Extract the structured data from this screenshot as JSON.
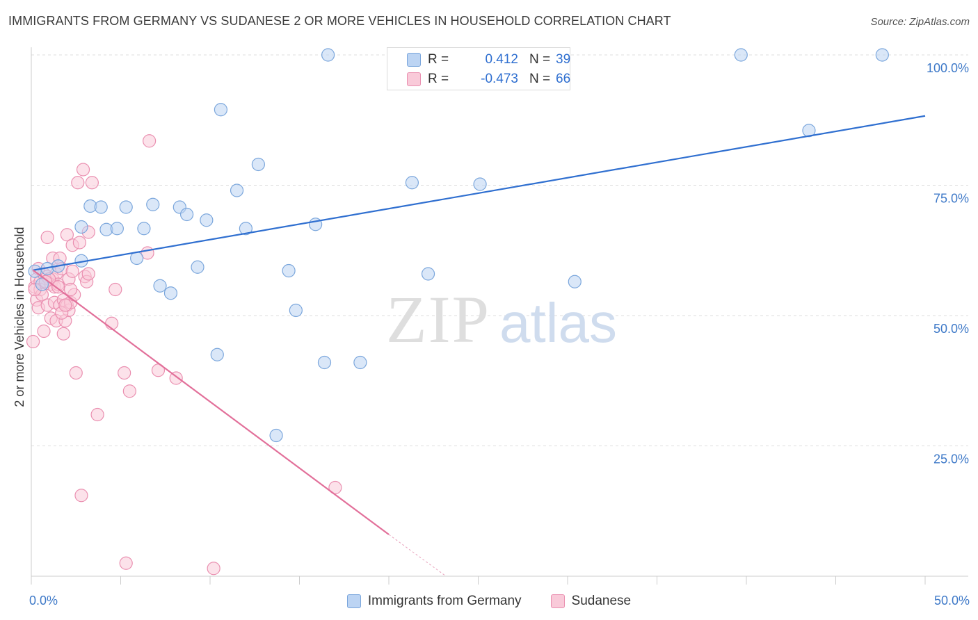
{
  "header": {
    "title": "IMMIGRANTS FROM GERMANY VS SUDANESE 2 OR MORE VEHICLES IN HOUSEHOLD CORRELATION CHART",
    "source": "Source: ZipAtlas.com"
  },
  "watermark": {
    "zip": "ZIP",
    "atlas": "atlas"
  },
  "colors": {
    "blue_fill": "#bcd4f3",
    "blue_stroke": "#7aa6dc",
    "blue_line": "#2f6fd0",
    "pink_fill": "#f9cad9",
    "pink_stroke": "#ea8fb0",
    "pink_line": "#e2709a",
    "grid": "#dddddd",
    "tick_text": "#3e79c8"
  },
  "stats": {
    "r_label": "R =",
    "n_label": "N =",
    "series": [
      {
        "name": "Immigrants from Germany",
        "r": "0.412",
        "n": "39"
      },
      {
        "name": "Sudanese",
        "r": "-0.473",
        "n": "66"
      }
    ]
  },
  "legend": [
    "Immigrants from Germany",
    "Sudanese"
  ],
  "chart_data": {
    "type": "scatter",
    "title": "IMMIGRANTS FROM GERMANY VS SUDANESE 2 OR MORE VEHICLES IN HOUSEHOLD CORRELATION CHART",
    "xlabel": "",
    "ylabel": "2 or more Vehicles in Household",
    "xlim": [
      0,
      50
    ],
    "ylim": [
      0,
      100
    ],
    "x_ticks": [
      0,
      5,
      10,
      15,
      20,
      25,
      30,
      35,
      40,
      45,
      50
    ],
    "x_tick_labels": {
      "0": "0.0%",
      "50": "50.0%"
    },
    "y_ticks": [
      25,
      50,
      75,
      100
    ],
    "y_tick_labels": [
      "25.0%",
      "50.0%",
      "75.0%",
      "100.0%"
    ],
    "grid": true,
    "legend_position": "bottom",
    "series": [
      {
        "name": "Immigrants from Germany",
        "color": "#7aa6dc",
        "trend": {
          "x": [
            0.1,
            50
          ],
          "y": [
            58.7,
            88.3
          ]
        },
        "points": [
          [
            0.2,
            58.5
          ],
          [
            0.9,
            59.0
          ],
          [
            0.6,
            56.0
          ],
          [
            1.5,
            59.5
          ],
          [
            2.8,
            60.5
          ],
          [
            2.8,
            67.0
          ],
          [
            3.3,
            71.0
          ],
          [
            3.9,
            70.8
          ],
          [
            4.2,
            66.5
          ],
          [
            4.8,
            66.7
          ],
          [
            5.3,
            70.8
          ],
          [
            5.9,
            61.0
          ],
          [
            6.3,
            66.7
          ],
          [
            6.8,
            71.3
          ],
          [
            7.2,
            55.7
          ],
          [
            7.8,
            54.3
          ],
          [
            8.3,
            70.8
          ],
          [
            8.7,
            69.4
          ],
          [
            9.3,
            59.3
          ],
          [
            9.8,
            68.3
          ],
          [
            10.6,
            89.5
          ],
          [
            10.4,
            42.5
          ],
          [
            11.5,
            74.0
          ],
          [
            12.0,
            66.7
          ],
          [
            12.7,
            79.0
          ],
          [
            13.7,
            27.0
          ],
          [
            14.4,
            58.6
          ],
          [
            14.8,
            51.0
          ],
          [
            15.9,
            67.5
          ],
          [
            16.4,
            41.0
          ],
          [
            16.6,
            100.0
          ],
          [
            18.4,
            41.0
          ],
          [
            21.3,
            75.5
          ],
          [
            22.2,
            58.0
          ],
          [
            25.1,
            75.2
          ],
          [
            30.4,
            56.5
          ],
          [
            39.7,
            100.0
          ],
          [
            43.5,
            85.5
          ],
          [
            47.6,
            100.0
          ]
        ]
      },
      {
        "name": "Sudanese",
        "color": "#ea8fb0",
        "trend": {
          "x": [
            0.1,
            20
          ],
          "y": [
            58.7,
            8.0
          ]
        },
        "trend_dashed": {
          "x": [
            20,
            23.2
          ],
          "y": [
            8.0,
            0.0
          ]
        },
        "points": [
          [
            0.1,
            45.0
          ],
          [
            0.2,
            55.5
          ],
          [
            0.3,
            57.0
          ],
          [
            0.3,
            53.0
          ],
          [
            0.4,
            51.5
          ],
          [
            0.5,
            56.5
          ],
          [
            0.5,
            55.0
          ],
          [
            0.6,
            54.0
          ],
          [
            0.7,
            58.0
          ],
          [
            0.7,
            47.0
          ],
          [
            0.9,
            65.0
          ],
          [
            0.9,
            57.5
          ],
          [
            0.9,
            52.0
          ],
          [
            1.1,
            56.0
          ],
          [
            1.1,
            49.5
          ],
          [
            1.2,
            57.0
          ],
          [
            1.2,
            61.0
          ],
          [
            1.3,
            55.5
          ],
          [
            1.3,
            52.5
          ],
          [
            1.4,
            58.0
          ],
          [
            1.4,
            49.0
          ],
          [
            1.5,
            56.0
          ],
          [
            1.6,
            61.0
          ],
          [
            1.6,
            52.0
          ],
          [
            1.7,
            59.0
          ],
          [
            1.8,
            53.0
          ],
          [
            1.8,
            46.5
          ],
          [
            1.9,
            49.0
          ],
          [
            2.0,
            65.5
          ],
          [
            2.0,
            52.0
          ],
          [
            2.1,
            57.0
          ],
          [
            2.1,
            51.0
          ],
          [
            2.2,
            52.5
          ],
          [
            2.3,
            63.5
          ],
          [
            2.3,
            58.5
          ],
          [
            2.4,
            54.0
          ],
          [
            2.5,
            39.0
          ],
          [
            2.6,
            75.5
          ],
          [
            2.7,
            64.0
          ],
          [
            2.8,
            15.5
          ],
          [
            2.9,
            78.0
          ],
          [
            3.0,
            57.5
          ],
          [
            3.1,
            56.5
          ],
          [
            3.2,
            66.0
          ],
          [
            3.2,
            58.0
          ],
          [
            3.4,
            75.5
          ],
          [
            3.7,
            31.0
          ],
          [
            4.5,
            48.5
          ],
          [
            4.7,
            55.0
          ],
          [
            5.2,
            39.0
          ],
          [
            5.3,
            2.5
          ],
          [
            5.5,
            35.5
          ],
          [
            6.5,
            62.0
          ],
          [
            6.6,
            83.5
          ],
          [
            7.1,
            39.5
          ],
          [
            8.1,
            38.0
          ],
          [
            10.2,
            1.5
          ],
          [
            17.0,
            17.0
          ],
          [
            0.2,
            55.0
          ],
          [
            1.0,
            57.0
          ],
          [
            1.5,
            55.5
          ],
          [
            0.8,
            56.5
          ],
          [
            1.7,
            50.5
          ],
          [
            2.2,
            55.0
          ],
          [
            0.4,
            59.0
          ],
          [
            1.9,
            52.0
          ]
        ]
      }
    ]
  }
}
